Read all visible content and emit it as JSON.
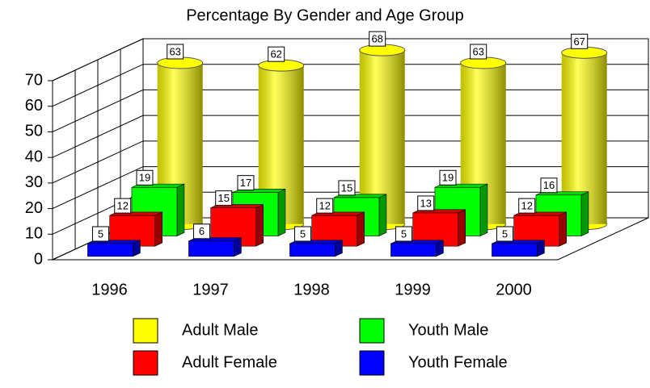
{
  "chart_data": {
    "type": "bar3d",
    "title": "Percentage By Gender and Age Group",
    "categories": [
      "1996",
      "1997",
      "1998",
      "1999",
      "2000"
    ],
    "series": [
      {
        "name": "Adult Male",
        "color": "#ffff00",
        "shape": "cylinder",
        "values": [
          63,
          62,
          68,
          63,
          67
        ]
      },
      {
        "name": "Youth Male",
        "color": "#00ff00",
        "shape": "box",
        "values": [
          19,
          17,
          15,
          19,
          16
        ]
      },
      {
        "name": "Adult Female",
        "color": "#ff0000",
        "shape": "box",
        "values": [
          12,
          15,
          12,
          13,
          12
        ]
      },
      {
        "name": "Youth Female",
        "color": "#0000ff",
        "shape": "box",
        "values": [
          5,
          6,
          5,
          5,
          5
        ]
      }
    ],
    "ylim": [
      0,
      70
    ],
    "yticks": [
      0,
      10,
      20,
      30,
      40,
      50,
      60,
      70
    ],
    "grid": true
  }
}
